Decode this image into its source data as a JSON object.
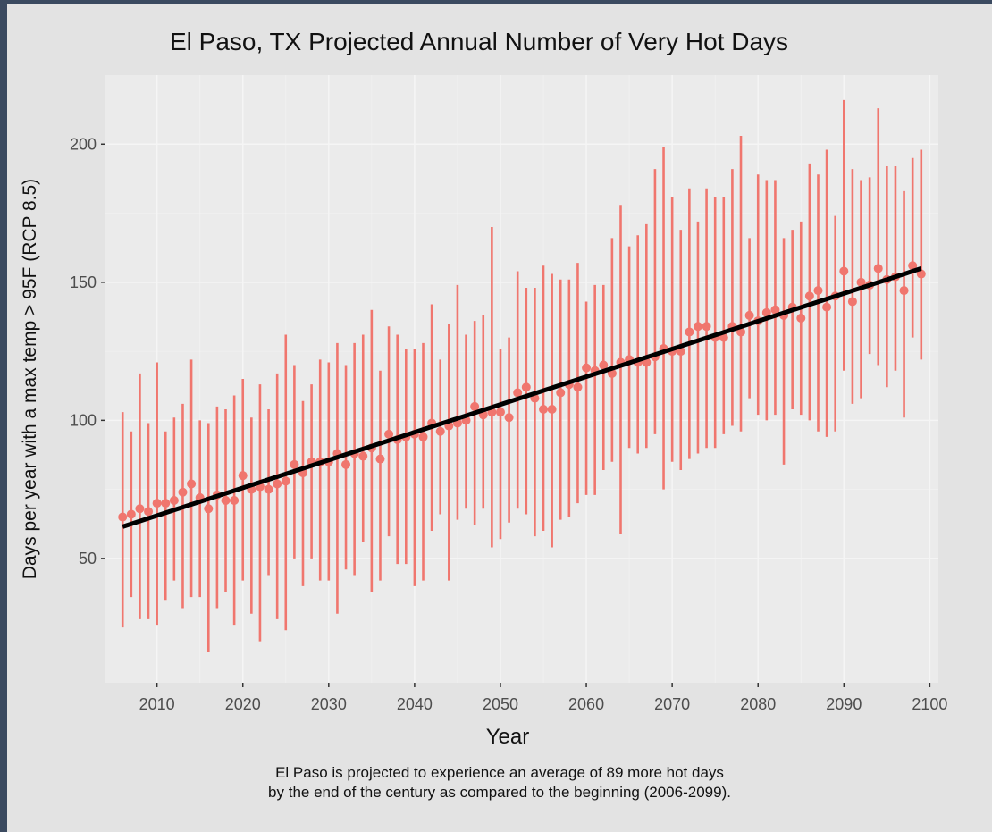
{
  "chart_data": {
    "type": "scatter",
    "title": "El Paso, TX Projected Annual Number of Very Hot Days",
    "xlabel": "Year",
    "ylabel": "Days per year with a max temp > 95F (RCP 8.5)",
    "xlim": [
      2004,
      2101
    ],
    "ylim": [
      5,
      225
    ],
    "xticks": [
      2010,
      2020,
      2030,
      2040,
      2050,
      2060,
      2070,
      2080,
      2090,
      2100
    ],
    "yticks": [
      50,
      100,
      150,
      200
    ],
    "grid": true,
    "legend": "none",
    "colors": {
      "points": "#f0766e",
      "errorbars": "#f0766e",
      "trend": "#000000",
      "panel": "#ebebeb",
      "gridline": "#f5f5f5"
    },
    "series": [
      {
        "x": [
          2006,
          2007,
          2008,
          2009,
          2010,
          2011,
          2012,
          2013,
          2014,
          2015,
          2016,
          2017,
          2018,
          2019,
          2020,
          2021,
          2022,
          2023,
          2024,
          2025,
          2026,
          2027,
          2028,
          2029,
          2030,
          2031,
          2032,
          2033,
          2034,
          2035,
          2036,
          2037,
          2038,
          2039,
          2040,
          2041,
          2042,
          2043,
          2044,
          2045,
          2046,
          2047,
          2048,
          2049,
          2050,
          2051,
          2052,
          2053,
          2054,
          2055,
          2056,
          2057,
          2058,
          2059,
          2060,
          2061,
          2062,
          2063,
          2064,
          2065,
          2066,
          2067,
          2068,
          2069,
          2070,
          2071,
          2072,
          2073,
          2074,
          2075,
          2076,
          2077,
          2078,
          2079,
          2080,
          2081,
          2082,
          2083,
          2084,
          2085,
          2086,
          2087,
          2088,
          2089,
          2090,
          2091,
          2092,
          2093,
          2094,
          2095,
          2096,
          2097,
          2098,
          2099
        ],
        "y": [
          65,
          66,
          68,
          67,
          70,
          70,
          71,
          74,
          77,
          72,
          68,
          73,
          71,
          71,
          80,
          75,
          76,
          75,
          77,
          78,
          84,
          81,
          85,
          85,
          85,
          88,
          84,
          88,
          87,
          90,
          86,
          95,
          93,
          94,
          95,
          94,
          99,
          96,
          98,
          99,
          100,
          105,
          102,
          103,
          103,
          101,
          110,
          112,
          108,
          104,
          104,
          110,
          113,
          112,
          119,
          118,
          120,
          117,
          121,
          122,
          121,
          121,
          123,
          126,
          125,
          125,
          132,
          134,
          134,
          130,
          130,
          134,
          132,
          138,
          136,
          139,
          140,
          138,
          141,
          137,
          145,
          147,
          141,
          145,
          154,
          143,
          150,
          149,
          155,
          151,
          152,
          147,
          156,
          153
        ],
        "low": [
          25,
          36,
          28,
          28,
          26,
          35,
          42,
          32,
          36,
          36,
          16,
          32,
          38,
          26,
          42,
          30,
          20,
          44,
          28,
          24,
          50,
          40,
          50,
          42,
          42,
          30,
          46,
          44,
          56,
          38,
          42,
          58,
          48,
          48,
          40,
          42,
          60,
          66,
          42,
          64,
          68,
          62,
          68,
          54,
          57,
          63,
          68,
          66,
          58,
          60,
          54,
          64,
          65,
          70,
          73,
          73,
          82,
          85,
          59,
          90,
          88,
          90,
          95,
          75,
          85,
          82,
          86,
          88,
          90,
          90,
          95,
          98,
          96,
          108,
          102,
          100,
          102,
          84,
          104,
          102,
          100,
          96,
          94,
          96,
          118,
          106,
          108,
          124,
          120,
          112,
          118,
          101,
          130,
          122
        ],
        "high": [
          103,
          96,
          117,
          99,
          121,
          96,
          101,
          106,
          122,
          100,
          99,
          105,
          104,
          109,
          115,
          101,
          113,
          104,
          117,
          131,
          120,
          107,
          113,
          122,
          121,
          128,
          120,
          128,
          131,
          140,
          118,
          134,
          131,
          126,
          126,
          128,
          142,
          122,
          135,
          149,
          131,
          136,
          138,
          170,
          126,
          130,
          154,
          148,
          148,
          156,
          153,
          151,
          151,
          157,
          143,
          149,
          149,
          166,
          178,
          163,
          167,
          171,
          191,
          199,
          181,
          169,
          184,
          172,
          184,
          181,
          181,
          191,
          203,
          166,
          189,
          187,
          187,
          166,
          169,
          172,
          193,
          189,
          198,
          174,
          216,
          191,
          187,
          188,
          213,
          192,
          192,
          183,
          195,
          198
        ]
      }
    ],
    "trend": {
      "x": [
        2006,
        2099
      ],
      "y": [
        61.5,
        155
      ]
    }
  },
  "caption": {
    "line1": "El Paso is projected to experience an average of 89 more hot days",
    "line2": "by the end of the century as compared to the beginning (2006-2099)."
  }
}
